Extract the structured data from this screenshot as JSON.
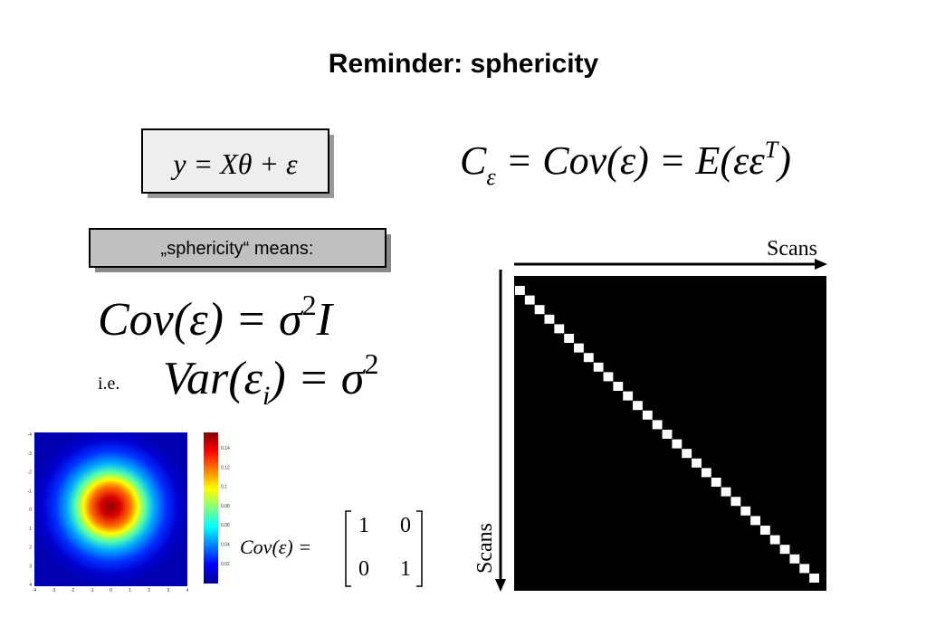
{
  "title": "Reminder: sphericity",
  "model_formula": "y = Xθ + ε",
  "covariance_definition": {
    "parts": [
      "C",
      "ε",
      " = Cov(ε) = E(εε",
      "T",
      ")"
    ]
  },
  "sphericity_box": "„sphericity“ means:",
  "sphericity_formula": {
    "parts": [
      "Cov(ε) = σ",
      "2",
      "I"
    ]
  },
  "ie_label": "i.e.",
  "variance_formula": {
    "parts": [
      "Var(ε",
      "i",
      ") = σ",
      "2"
    ]
  },
  "heatmap": {
    "xticks": [
      -4,
      -3,
      -2,
      -1,
      0,
      1,
      2,
      3,
      4
    ],
    "yticks": [
      -4,
      -3,
      -2,
      -1,
      0,
      1,
      2,
      3,
      4
    ],
    "colorbar_ticks": [
      0.14,
      0.12,
      0.1,
      0.08,
      0.06,
      0.04,
      0.02
    ]
  },
  "identity_formula": {
    "label": "Cov(ε) =",
    "matrix": [
      [
        1,
        0
      ],
      [
        0,
        1
      ]
    ]
  },
  "covariance_matrix": {
    "x_label": "Scans",
    "y_label": "Scans"
  }
}
